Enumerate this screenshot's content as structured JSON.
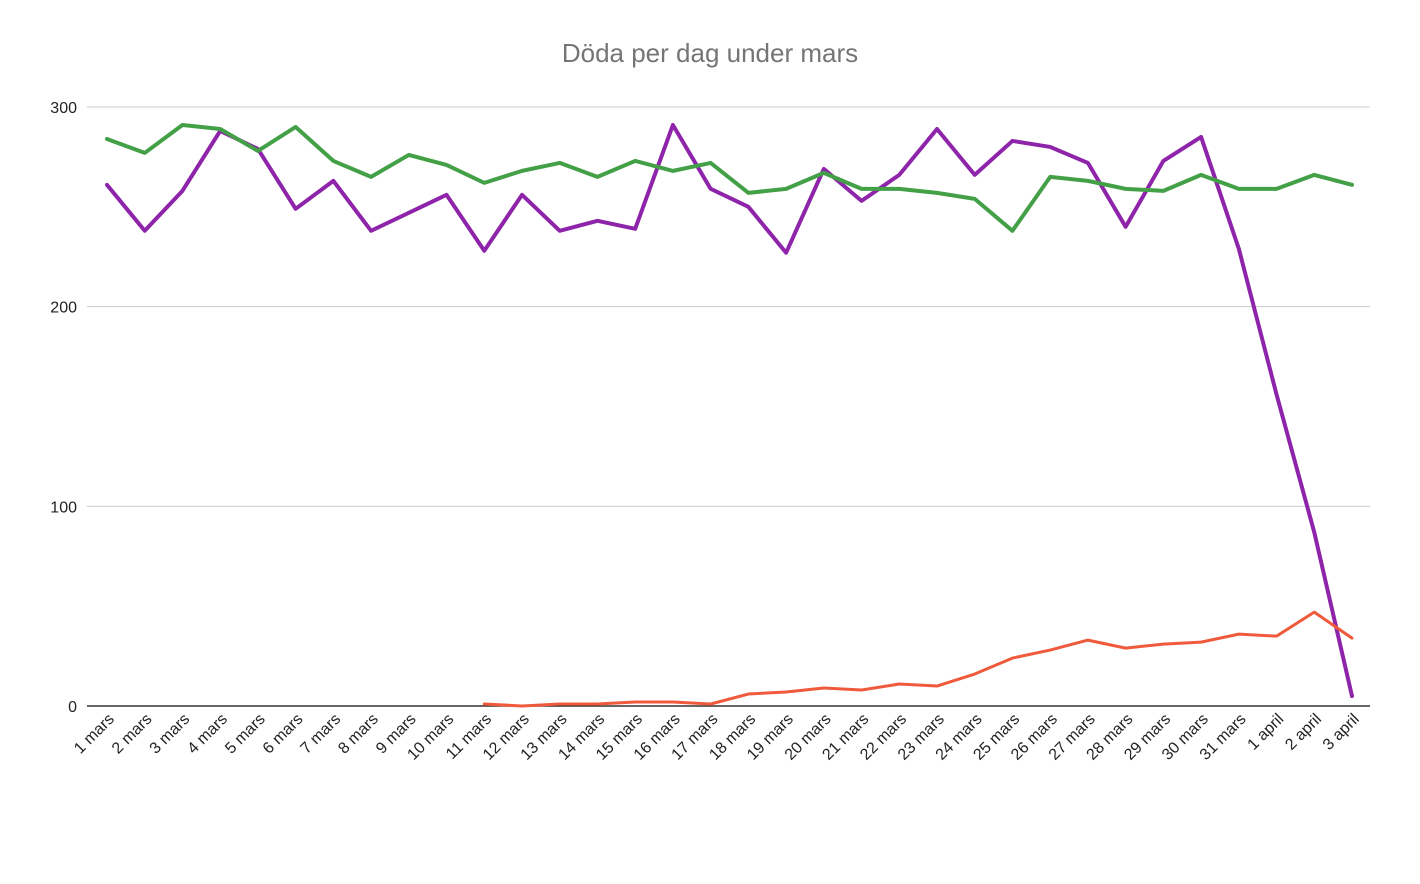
{
  "chart_data": {
    "type": "line",
    "title": "Döda per dag under mars",
    "xlabel": "",
    "ylabel": "",
    "ylim": [
      0,
      300
    ],
    "yticks": [
      0,
      100,
      200,
      300
    ],
    "grid": true,
    "categories": [
      "1 mars",
      "2 mars",
      "3 mars",
      "4 mars",
      "5 mars",
      "6 mars",
      "7 mars",
      "8 mars",
      "9 mars",
      "10 mars",
      "11 mars",
      "12 mars",
      "13 mars",
      "14 mars",
      "15 mars",
      "16 mars",
      "17 mars",
      "18 mars",
      "19 mars",
      "20 mars",
      "21 mars",
      "22 mars",
      "23 mars",
      "24 mars",
      "25 mars",
      "26 mars",
      "27 mars",
      "28 mars",
      "29 mars",
      "30 mars",
      "31 mars",
      "1 april",
      "2 april",
      "3 april"
    ],
    "series": [
      {
        "color": "#8e24aa",
        "stroke_width": 4,
        "values": [
          261,
          238,
          258,
          288,
          279,
          249,
          263,
          238,
          247,
          256,
          228,
          256,
          238,
          243,
          239,
          291,
          259,
          250,
          227,
          269,
          253,
          266,
          289,
          266,
          283,
          280,
          272,
          240,
          273,
          285,
          229,
          156,
          87,
          5
        ]
      },
      {
        "color": "#43a047",
        "stroke_width": 4,
        "values": [
          284,
          277,
          291,
          289,
          278,
          290,
          273,
          265,
          276,
          271,
          262,
          268,
          272,
          265,
          273,
          268,
          272,
          257,
          259,
          267,
          259,
          259,
          257,
          254,
          238,
          265,
          263,
          259,
          258,
          266,
          259,
          259,
          266,
          261
        ]
      },
      {
        "color": "#ef5a3c",
        "stroke_width": 3,
        "values": [
          null,
          null,
          null,
          null,
          null,
          null,
          null,
          null,
          null,
          null,
          1,
          0,
          1,
          1,
          2,
          2,
          1,
          6,
          7,
          9,
          8,
          11,
          10,
          16,
          24,
          28,
          33,
          29,
          31,
          32,
          36,
          35,
          47,
          34
        ]
      }
    ]
  }
}
